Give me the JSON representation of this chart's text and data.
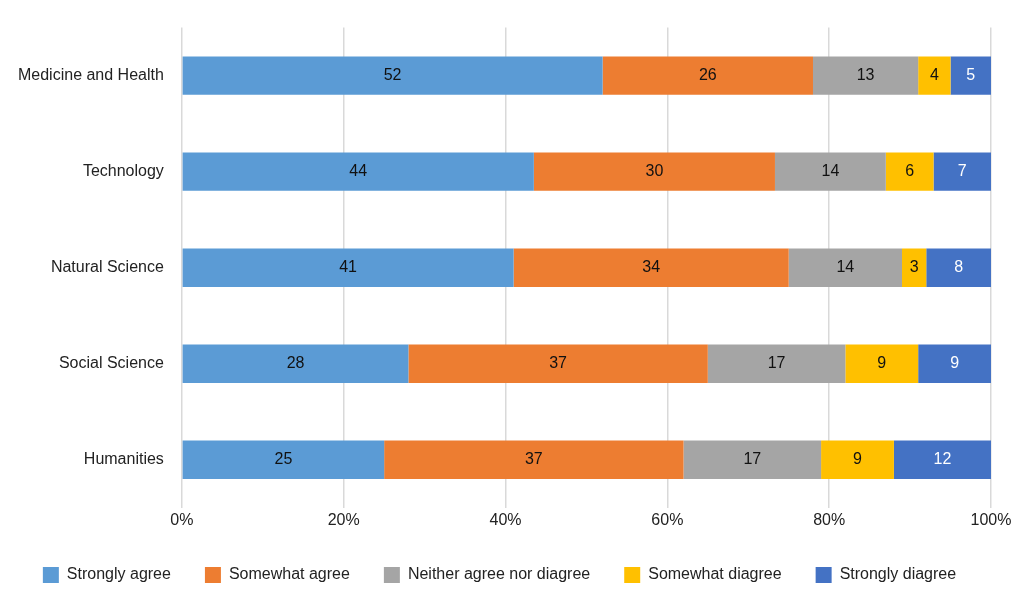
{
  "chart_data": {
    "type": "bar",
    "orientation": "horizontal",
    "stacked": true,
    "categories": [
      "Medicine and Health",
      "Technology",
      "Natural Science",
      "Social Science",
      "Humanities"
    ],
    "series": [
      {
        "name": "Strongly agree",
        "color": "#5b9bd5",
        "values": [
          52,
          43.5,
          41,
          28,
          25
        ],
        "value_labels": [
          "52",
          "44",
          "41",
          "28",
          "25"
        ]
      },
      {
        "name": "Somewhat agree",
        "color": "#ed7d31",
        "values": [
          26,
          29.8,
          34,
          37,
          37
        ],
        "value_labels": [
          "26",
          "30",
          "34",
          "37",
          "37"
        ]
      },
      {
        "name": "Neither agree nor diagree",
        "color": "#a5a5a5",
        "values": [
          13,
          13.7,
          14,
          17,
          17
        ],
        "value_labels": [
          "13",
          "14",
          "14",
          "17",
          "17"
        ]
      },
      {
        "name": "Somewhat diagree",
        "color": "#ffc000",
        "values": [
          4,
          5.9,
          3,
          9,
          9
        ],
        "value_labels": [
          "4",
          "6",
          "3",
          "9",
          "9"
        ]
      },
      {
        "name": "Strongly diagree",
        "color": "#4472c4",
        "values": [
          5,
          7.1,
          8,
          9,
          12
        ],
        "value_labels": [
          "5",
          "7",
          "8",
          "9",
          "12"
        ]
      }
    ],
    "xlim": [
      0,
      100
    ],
    "xticks": [
      {
        "value": 0,
        "label": "0%"
      },
      {
        "value": 20,
        "label": "20%"
      },
      {
        "value": 40,
        "label": "40%"
      },
      {
        "value": 60,
        "label": "60%"
      },
      {
        "value": 80,
        "label": "80%"
      },
      {
        "value": 100,
        "label": "100%"
      }
    ],
    "grid": "x",
    "legend": "bottom"
  }
}
